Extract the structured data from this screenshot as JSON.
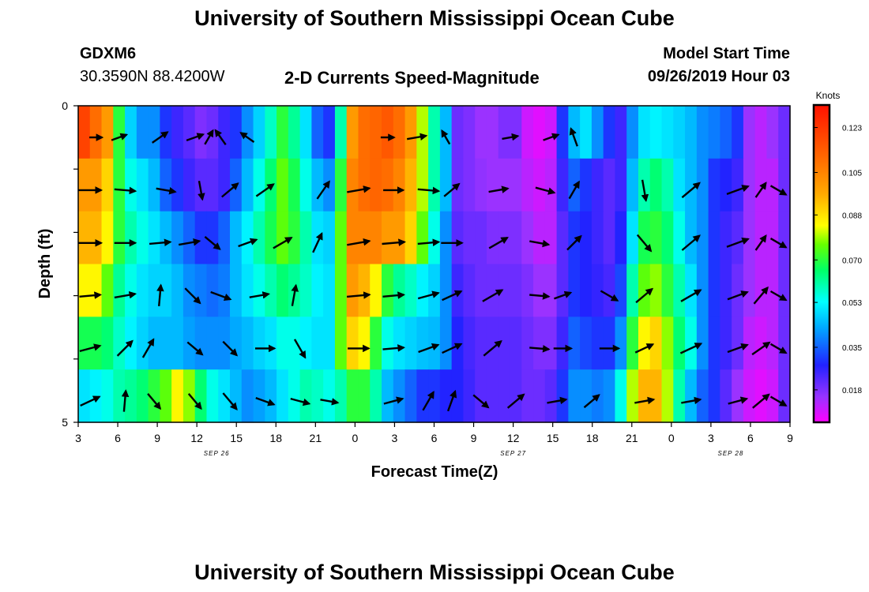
{
  "page": {
    "title_top": "University of Southern Mississippi Ocean Cube",
    "title_bottom": "University of Southern Mississippi Ocean Cube",
    "station_id": "GDXM6",
    "station_coords": "30.3590N 88.4200W",
    "plot_title": "2-D Currents Speed-Magnitude",
    "model_start_label": "Model Start Time",
    "model_start_value": "09/26/2019 Hour 03"
  },
  "chart_data": {
    "type": "heatmap",
    "title": "2-D Currents Speed-Magnitude",
    "xlabel": "Forecast Time(Z)",
    "ylabel": "Depth (ft)",
    "y_ticks": [
      "0",
      "",
      "",
      "",
      "",
      "5"
    ],
    "ylim": [
      0,
      5
    ],
    "x_ticks": [
      "3",
      "6",
      "9",
      "12",
      "15",
      "18",
      "21",
      "0",
      "3",
      "6",
      "9",
      "12",
      "15",
      "18",
      "21",
      "0",
      "3",
      "6",
      "9"
    ],
    "date_labels": [
      {
        "label": "SEP 26",
        "tick_index": 3.5
      },
      {
        "label": "SEP 27",
        "tick_index": 11
      },
      {
        "label": "SEP 28",
        "tick_index": 16.5
      }
    ],
    "colorbar": {
      "title": "Knots",
      "min": 0.005,
      "max": 0.132,
      "tick_values": [
        0.123,
        0.105,
        0.088,
        0.07,
        0.053,
        0.035,
        0.018
      ],
      "tick_labels": [
        "0.123",
        "0.105",
        "0.088",
        "0.070",
        "0.053",
        "0.035",
        "0.018"
      ]
    },
    "speed_rows": [
      [
        0.12,
        0.11,
        0.1,
        0.07,
        0.048,
        0.04,
        0.04,
        0.03,
        0.025,
        0.022,
        0.018,
        0.02,
        0.025,
        0.03,
        0.04,
        0.048,
        0.058,
        0.07,
        0.062,
        0.05,
        0.035,
        0.03,
        0.06,
        0.1,
        0.11,
        0.112,
        0.115,
        0.11,
        0.1,
        0.08,
        0.06,
        0.045,
        0.02,
        0.018,
        0.015,
        0.015,
        0.018,
        0.018,
        0.01,
        0.008,
        0.01,
        0.03,
        0.045,
        0.05,
        0.04,
        0.03,
        0.025,
        0.04,
        0.05,
        0.052,
        0.05,
        0.048,
        0.045,
        0.04,
        0.038,
        0.035,
        0.03,
        0.015,
        0.012,
        0.015,
        0.02
      ],
      [
        0.1,
        0.1,
        0.09,
        0.07,
        0.055,
        0.05,
        0.045,
        0.035,
        0.03,
        0.025,
        0.022,
        0.022,
        0.025,
        0.035,
        0.045,
        0.055,
        0.065,
        0.075,
        0.068,
        0.055,
        0.045,
        0.04,
        0.07,
        0.105,
        0.11,
        0.112,
        0.11,
        0.105,
        0.095,
        0.08,
        0.06,
        0.045,
        0.02,
        0.018,
        0.016,
        0.015,
        0.015,
        0.015,
        0.012,
        0.01,
        0.012,
        0.025,
        0.035,
        0.03,
        0.025,
        0.022,
        0.025,
        0.045,
        0.06,
        0.065,
        0.06,
        0.05,
        0.045,
        0.04,
        0.03,
        0.028,
        0.025,
        0.015,
        0.012,
        0.012,
        0.02
      ],
      [
        0.095,
        0.095,
        0.085,
        0.07,
        0.06,
        0.055,
        0.05,
        0.045,
        0.04,
        0.035,
        0.03,
        0.03,
        0.035,
        0.045,
        0.052,
        0.06,
        0.068,
        0.075,
        0.07,
        0.06,
        0.05,
        0.048,
        0.075,
        0.105,
        0.105,
        0.105,
        0.1,
        0.1,
        0.09,
        0.075,
        0.055,
        0.04,
        0.022,
        0.02,
        0.02,
        0.018,
        0.018,
        0.018,
        0.015,
        0.012,
        0.012,
        0.022,
        0.03,
        0.028,
        0.025,
        0.022,
        0.028,
        0.05,
        0.068,
        0.07,
        0.065,
        0.055,
        0.045,
        0.04,
        0.03,
        0.025,
        0.022,
        0.015,
        0.012,
        0.012,
        0.02
      ],
      [
        0.085,
        0.085,
        0.075,
        0.062,
        0.055,
        0.05,
        0.048,
        0.048,
        0.045,
        0.04,
        0.038,
        0.036,
        0.038,
        0.045,
        0.05,
        0.055,
        0.06,
        0.065,
        0.062,
        0.058,
        0.052,
        0.05,
        0.075,
        0.1,
        0.095,
        0.085,
        0.07,
        0.062,
        0.058,
        0.052,
        0.048,
        0.04,
        0.025,
        0.022,
        0.02,
        0.02,
        0.02,
        0.02,
        0.018,
        0.015,
        0.015,
        0.022,
        0.03,
        0.028,
        0.026,
        0.024,
        0.032,
        0.06,
        0.075,
        0.078,
        0.07,
        0.06,
        0.05,
        0.04,
        0.03,
        0.025,
        0.02,
        0.015,
        0.012,
        0.012,
        0.02
      ],
      [
        0.068,
        0.068,
        0.065,
        0.058,
        0.052,
        0.048,
        0.045,
        0.045,
        0.045,
        0.042,
        0.04,
        0.04,
        0.04,
        0.043,
        0.045,
        0.048,
        0.05,
        0.055,
        0.055,
        0.052,
        0.05,
        0.05,
        0.075,
        0.09,
        0.085,
        0.07,
        0.055,
        0.05,
        0.048,
        0.046,
        0.045,
        0.04,
        0.028,
        0.024,
        0.022,
        0.022,
        0.022,
        0.022,
        0.02,
        0.018,
        0.018,
        0.025,
        0.035,
        0.032,
        0.03,
        0.03,
        0.04,
        0.07,
        0.085,
        0.09,
        0.078,
        0.065,
        0.055,
        0.04,
        0.03,
        0.025,
        0.02,
        0.012,
        0.01,
        0.012,
        0.02
      ],
      [
        0.05,
        0.052,
        0.055,
        0.06,
        0.062,
        0.065,
        0.07,
        0.075,
        0.085,
        0.078,
        0.065,
        0.055,
        0.05,
        0.045,
        0.04,
        0.042,
        0.045,
        0.05,
        0.055,
        0.06,
        0.058,
        0.055,
        0.06,
        0.07,
        0.07,
        0.06,
        0.045,
        0.04,
        0.035,
        0.03,
        0.03,
        0.028,
        0.028,
        0.025,
        0.022,
        0.022,
        0.022,
        0.022,
        0.02,
        0.02,
        0.022,
        0.03,
        0.04,
        0.04,
        0.038,
        0.04,
        0.055,
        0.08,
        0.095,
        0.095,
        0.08,
        0.06,
        0.045,
        0.035,
        0.03,
        0.022,
        0.015,
        0.01,
        0.008,
        0.01,
        0.02
      ]
    ],
    "vector_rows": [
      [
        [
          1.5,
          0.01,
          0
        ],
        [
          3.5,
          0.02,
          -20
        ],
        [
          7,
          0.028,
          -35
        ],
        [
          10,
          0.025,
          -20
        ],
        [
          11.2,
          0.02,
          -60
        ],
        [
          12.2,
          0.025,
          -125
        ],
        [
          14.5,
          0.02,
          -145
        ],
        [
          26.5,
          0.012,
          0
        ],
        [
          29,
          0.03,
          -10
        ],
        [
          31.5,
          0.018,
          -120
        ],
        [
          37,
          0.02,
          -10
        ],
        [
          40.5,
          0.02,
          -20
        ],
        [
          42.5,
          0.028,
          -110
        ]
      ],
      [
        [
          1,
          0.04,
          0
        ],
        [
          4,
          0.035,
          5
        ],
        [
          7.5,
          0.03,
          10
        ],
        [
          10.5,
          0.028,
          80
        ],
        [
          13,
          0.035,
          -40
        ],
        [
          16,
          0.035,
          -35
        ],
        [
          21,
          0.035,
          -55
        ],
        [
          24,
          0.04,
          -10
        ],
        [
          27,
          0.032,
          0
        ],
        [
          30,
          0.035,
          5
        ],
        [
          32,
          0.03,
          -40
        ],
        [
          36,
          0.03,
          -10
        ],
        [
          40,
          0.03,
          15
        ],
        [
          42.5,
          0.03,
          -60
        ],
        [
          48.5,
          0.035,
          80
        ],
        [
          52.5,
          0.04,
          -40
        ],
        [
          56.5,
          0.04,
          -20
        ],
        [
          58.5,
          0.025,
          -55
        ],
        [
          60,
          0.025,
          30
        ]
      ],
      [
        [
          1,
          0.04,
          0
        ],
        [
          4,
          0.035,
          0
        ],
        [
          7,
          0.035,
          -5
        ],
        [
          9.5,
          0.035,
          -10
        ],
        [
          11.5,
          0.03,
          40
        ],
        [
          14.5,
          0.03,
          -20
        ],
        [
          17.5,
          0.035,
          -30
        ],
        [
          20.5,
          0.035,
          -65
        ],
        [
          24,
          0.04,
          -10
        ],
        [
          27,
          0.04,
          -5
        ],
        [
          30,
          0.035,
          -5
        ],
        [
          32,
          0.035,
          0
        ],
        [
          36,
          0.035,
          -30
        ],
        [
          39.5,
          0.03,
          10
        ],
        [
          42.5,
          0.03,
          -45
        ],
        [
          48.5,
          0.035,
          50
        ],
        [
          52.5,
          0.04,
          -40
        ],
        [
          56.5,
          0.04,
          -20
        ],
        [
          58.5,
          0.025,
          -55
        ],
        [
          60,
          0.025,
          30
        ]
      ],
      [
        [
          1,
          0.035,
          -5
        ],
        [
          4,
          0.035,
          -10
        ],
        [
          7,
          0.035,
          -85
        ],
        [
          9.8,
          0.035,
          45
        ],
        [
          12.2,
          0.035,
          20
        ],
        [
          15.5,
          0.03,
          -10
        ],
        [
          18.5,
          0.035,
          -80
        ],
        [
          24,
          0.04,
          -5
        ],
        [
          27,
          0.035,
          -5
        ],
        [
          30,
          0.035,
          -15
        ],
        [
          32,
          0.035,
          -25
        ],
        [
          35.5,
          0.04,
          -30
        ],
        [
          39.5,
          0.03,
          5
        ],
        [
          41.5,
          0.025,
          -20
        ],
        [
          45.5,
          0.03,
          30
        ],
        [
          48.5,
          0.035,
          -40
        ],
        [
          52.5,
          0.04,
          -30
        ],
        [
          56.5,
          0.035,
          -20
        ],
        [
          58.5,
          0.035,
          -50
        ],
        [
          60,
          0.025,
          30
        ]
      ],
      [
        [
          1,
          0.035,
          -15
        ],
        [
          4,
          0.035,
          -45
        ],
        [
          6,
          0.035,
          -60
        ],
        [
          10,
          0.03,
          40
        ],
        [
          13,
          0.03,
          45
        ],
        [
          16,
          0.03,
          0
        ],
        [
          19,
          0.035,
          60
        ],
        [
          24,
          0.035,
          0
        ],
        [
          27,
          0.035,
          -5
        ],
        [
          30,
          0.035,
          -20
        ],
        [
          32,
          0.035,
          -25
        ],
        [
          35.5,
          0.04,
          -40
        ],
        [
          39.5,
          0.03,
          5
        ],
        [
          41.5,
          0.025,
          0
        ],
        [
          45.5,
          0.03,
          0
        ],
        [
          48.5,
          0.03,
          -25
        ],
        [
          52.5,
          0.04,
          -25
        ],
        [
          56.5,
          0.035,
          -20
        ],
        [
          58.5,
          0.035,
          -35
        ],
        [
          60,
          0.025,
          30
        ]
      ],
      [
        [
          1,
          0.035,
          -25
        ],
        [
          4,
          0.035,
          -85
        ],
        [
          6.5,
          0.03,
          50
        ],
        [
          10,
          0.03,
          50
        ],
        [
          13,
          0.035,
          50
        ],
        [
          16,
          0.03,
          20
        ],
        [
          19,
          0.03,
          15
        ],
        [
          21.5,
          0.025,
          10
        ],
        [
          27,
          0.03,
          -15
        ],
        [
          30,
          0.035,
          -60
        ],
        [
          32,
          0.035,
          -70
        ],
        [
          34.5,
          0.03,
          40
        ],
        [
          37.5,
          0.035,
          -40
        ],
        [
          41,
          0.03,
          -10
        ],
        [
          44,
          0.03,
          -40
        ],
        [
          48.5,
          0.03,
          -10
        ],
        [
          52.5,
          0.03,
          -10
        ],
        [
          56.5,
          0.03,
          -15
        ],
        [
          58.5,
          0.035,
          -40
        ],
        [
          60,
          0.025,
          30
        ]
      ]
    ]
  }
}
